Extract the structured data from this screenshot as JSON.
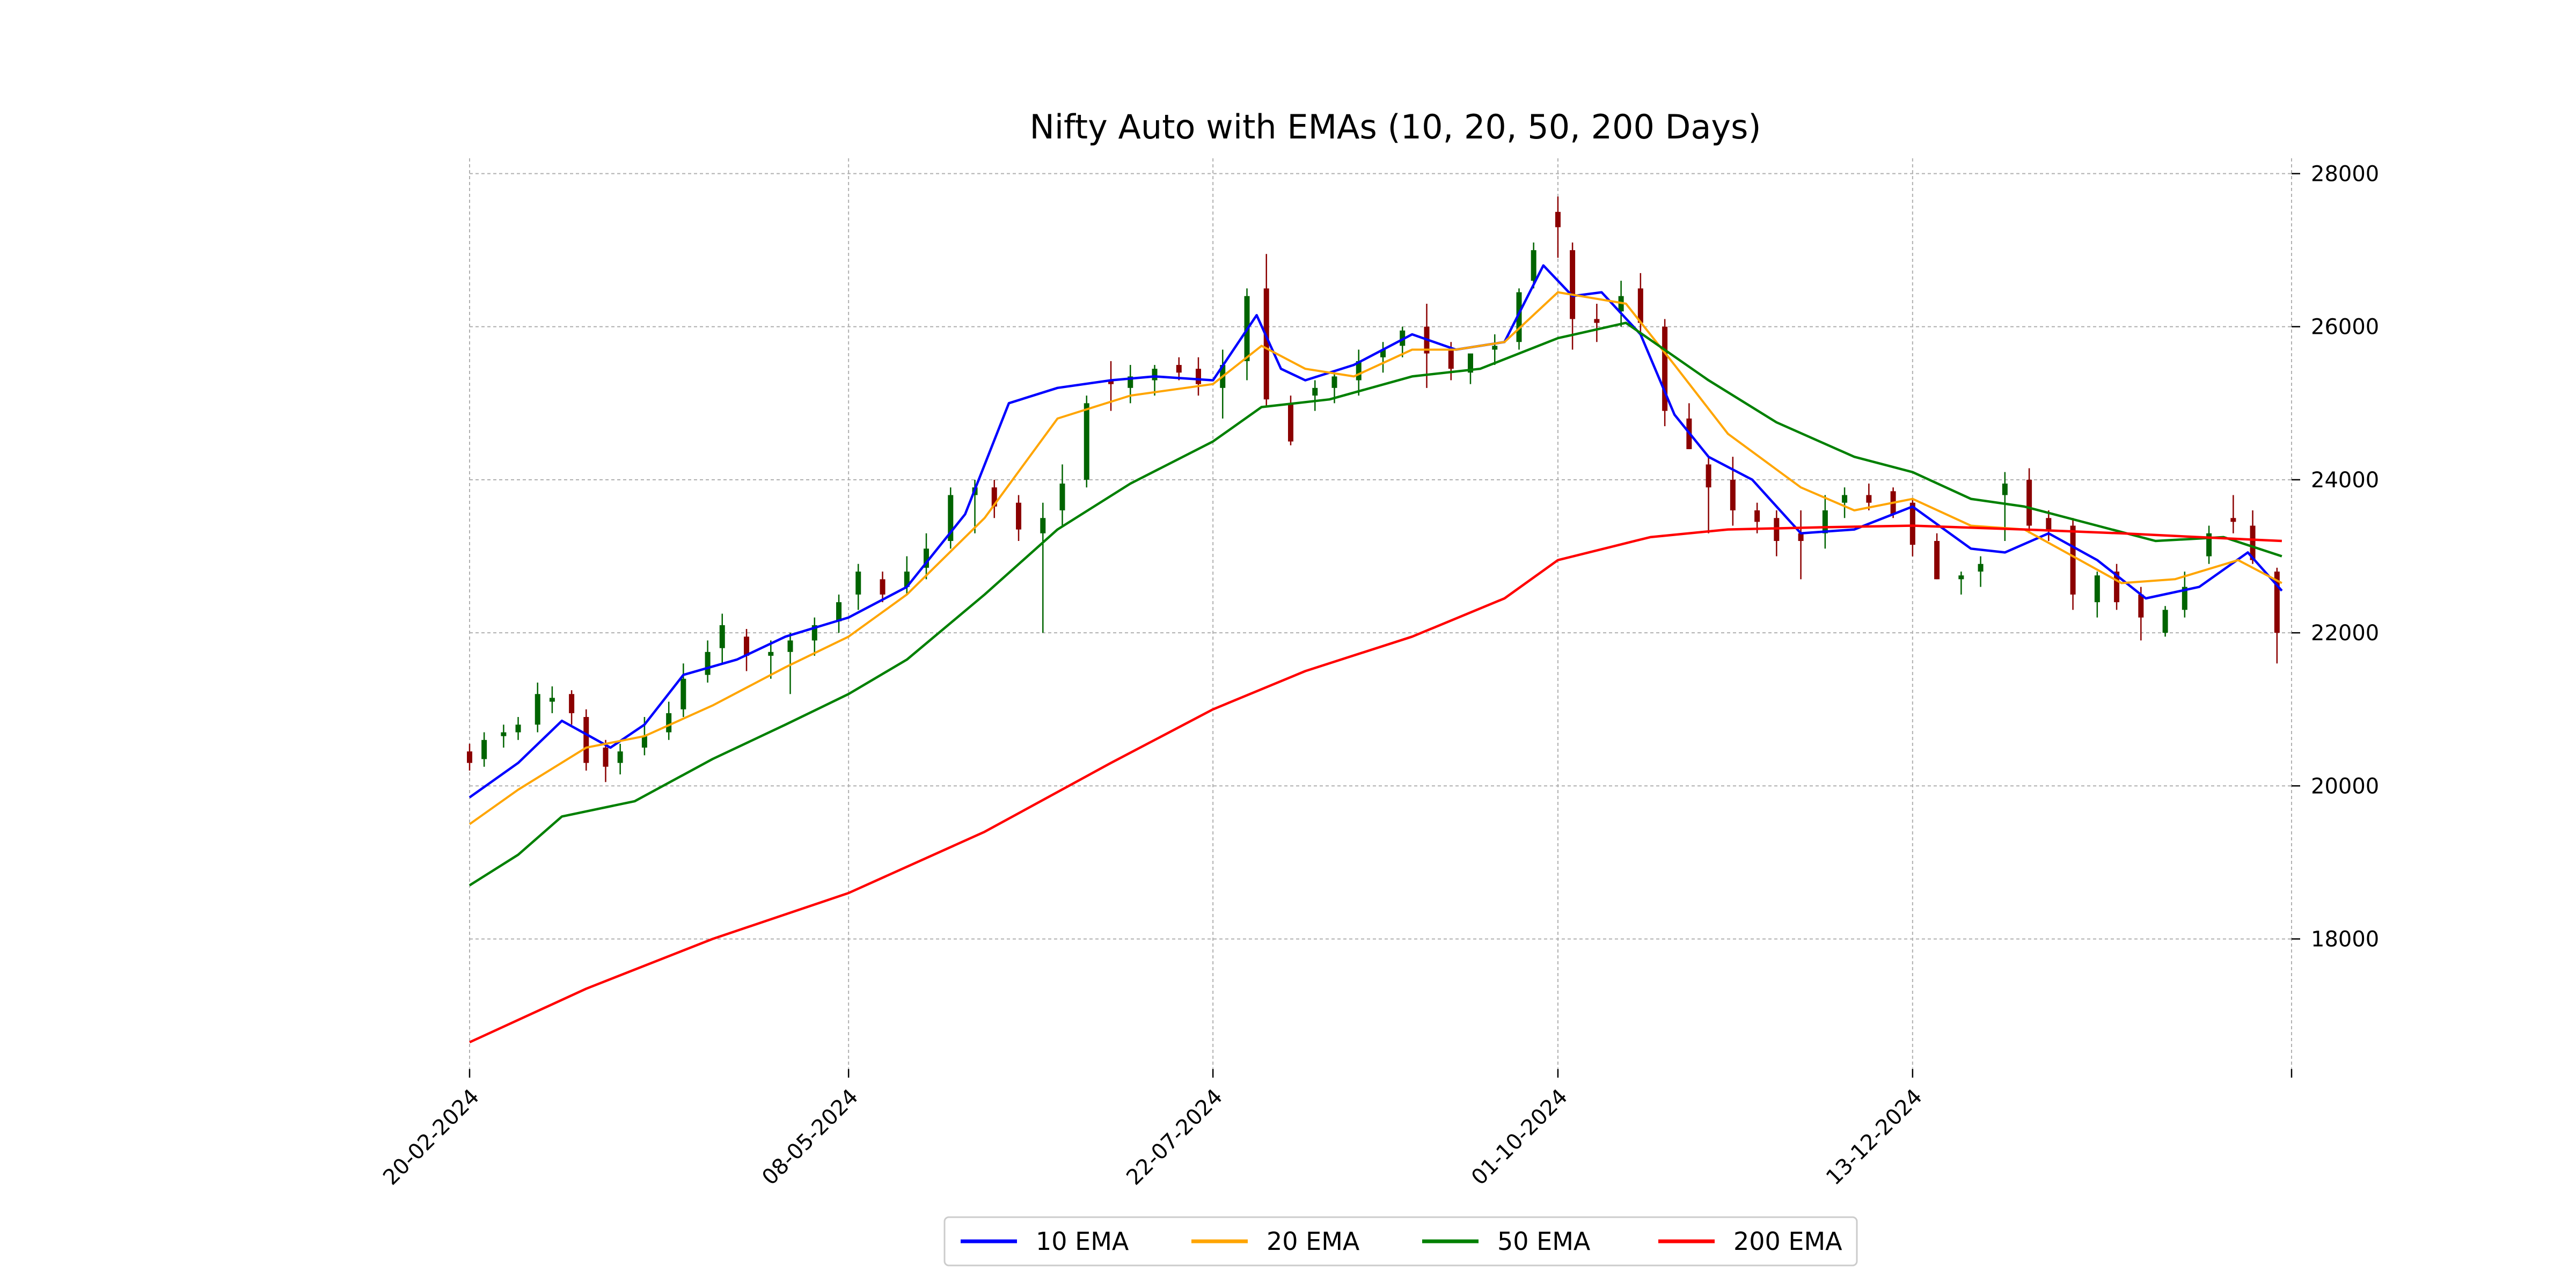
{
  "chart_data": {
    "type": "line",
    "title": "Nifty Auto with EMAs (10, 20, 50, 200 Days)",
    "xlabel": "",
    "ylabel": "",
    "x_range": [
      "2024-02-20",
      "2025-03-01"
    ],
    "ylim": [
      16300,
      28200
    ],
    "y_axis_position": "right",
    "x_ticks": [
      "20-02-2024",
      "08-05-2024",
      "22-07-2024",
      "01-10-2024",
      "13-12-2024"
    ],
    "y_ticks": [
      18000,
      20000,
      22000,
      24000,
      26000,
      28000
    ],
    "grid": true,
    "legend": {
      "position": "bottom-center",
      "entries": [
        "10 EMA",
        "20 EMA",
        "50 EMA",
        "200 EMA"
      ]
    },
    "colors": {
      "ema10": "#0000ff",
      "ema20": "#ffa500",
      "ema50": "#008000",
      "ema200": "#ff0000",
      "candle_up": "#006400",
      "candle_down": "#8b0000",
      "grid": "#b0b0b0"
    },
    "series": [
      {
        "name": "10 EMA",
        "x": [
          "2024-02-20",
          "2024-03-01",
          "2024-03-10",
          "2024-03-20",
          "2024-03-27",
          "2024-04-04",
          "2024-04-15",
          "2024-04-25",
          "2024-05-08",
          "2024-05-20",
          "2024-06-01",
          "2024-06-10",
          "2024-06-20",
          "2024-07-01",
          "2024-07-10",
          "2024-07-22",
          "2024-07-31",
          "2024-08-05",
          "2024-08-10",
          "2024-08-20",
          "2024-09-01",
          "2024-09-10",
          "2024-09-20",
          "2024-09-28",
          "2024-10-04",
          "2024-10-10",
          "2024-10-18",
          "2024-10-25",
          "2024-11-01",
          "2024-11-10",
          "2024-11-20",
          "2024-12-01",
          "2024-12-13",
          "2024-12-25",
          "2025-01-01",
          "2025-01-10",
          "2025-01-20",
          "2025-01-30",
          "2025-02-10",
          "2025-02-20",
          "2025-02-27"
        ],
        "values": [
          19850,
          20300,
          20850,
          20500,
          20800,
          21450,
          21650,
          21950,
          22200,
          22600,
          23550,
          25000,
          25200,
          25300,
          25350,
          25300,
          26150,
          25450,
          25300,
          25500,
          25900,
          25700,
          25800,
          26800,
          26400,
          26450,
          25900,
          24850,
          24300,
          24000,
          23300,
          23350,
          23650,
          23100,
          23050,
          23300,
          22950,
          22450,
          22600,
          23050,
          22550
        ]
      },
      {
        "name": "20 EMA",
        "x": [
          "2024-02-20",
          "2024-03-01",
          "2024-03-15",
          "2024-03-27",
          "2024-04-10",
          "2024-04-25",
          "2024-05-08",
          "2024-05-20",
          "2024-06-05",
          "2024-06-20",
          "2024-07-05",
          "2024-07-22",
          "2024-08-01",
          "2024-08-10",
          "2024-08-20",
          "2024-09-01",
          "2024-09-10",
          "2024-09-20",
          "2024-10-01",
          "2024-10-15",
          "2024-10-25",
          "2024-11-05",
          "2024-11-20",
          "2024-12-01",
          "2024-12-13",
          "2024-12-25",
          "2025-01-05",
          "2025-01-15",
          "2025-01-25",
          "2025-02-05",
          "2025-02-18",
          "2025-02-27"
        ],
        "values": [
          19500,
          19950,
          20500,
          20650,
          21050,
          21550,
          21950,
          22500,
          23500,
          24800,
          25100,
          25250,
          25750,
          25450,
          25350,
          25700,
          25700,
          25800,
          26450,
          26300,
          25500,
          24600,
          23900,
          23600,
          23750,
          23400,
          23350,
          23000,
          22650,
          22700,
          22950,
          22650
        ]
      },
      {
        "name": "50 EMA",
        "x": [
          "2024-02-20",
          "2024-03-01",
          "2024-03-10",
          "2024-03-25",
          "2024-04-10",
          "2024-04-25",
          "2024-05-08",
          "2024-05-20",
          "2024-06-05",
          "2024-06-20",
          "2024-07-05",
          "2024-07-22",
          "2024-08-01",
          "2024-08-15",
          "2024-09-01",
          "2024-09-15",
          "2024-10-01",
          "2024-10-15",
          "2024-11-01",
          "2024-11-15",
          "2024-12-01",
          "2024-12-13",
          "2024-12-25",
          "2025-01-05",
          "2025-01-20",
          "2025-02-01",
          "2025-02-15",
          "2025-02-27"
        ],
        "values": [
          18700,
          19100,
          19600,
          19800,
          20350,
          20800,
          21200,
          21650,
          22500,
          23350,
          23950,
          24500,
          24950,
          25050,
          25350,
          25450,
          25850,
          26050,
          25300,
          24750,
          24300,
          24100,
          23750,
          23650,
          23400,
          23200,
          23250,
          23000
        ]
      },
      {
        "name": "200 EMA",
        "x": [
          "2024-02-20",
          "2024-03-15",
          "2024-04-10",
          "2024-05-08",
          "2024-06-05",
          "2024-07-01",
          "2024-07-22",
          "2024-08-10",
          "2024-09-01",
          "2024-09-20",
          "2024-10-01",
          "2024-10-20",
          "2024-11-05",
          "2024-11-25",
          "2024-12-13",
          "2025-01-05",
          "2025-01-25",
          "2025-02-10",
          "2025-02-27"
        ],
        "values": [
          16650,
          17350,
          18000,
          18600,
          19400,
          20300,
          21000,
          21500,
          21950,
          22450,
          22950,
          23250,
          23350,
          23380,
          23400,
          23350,
          23300,
          23250,
          23200
        ]
      }
    ],
    "ohlc": {
      "x": [
        "2024-02-20",
        "2024-02-23",
        "2024-02-27",
        "2024-03-01",
        "2024-03-05",
        "2024-03-08",
        "2024-03-12",
        "2024-03-15",
        "2024-03-19",
        "2024-03-22",
        "2024-03-27",
        "2024-04-01",
        "2024-04-04",
        "2024-04-09",
        "2024-04-12",
        "2024-04-17",
        "2024-04-22",
        "2024-04-26",
        "2024-05-01",
        "2024-05-06",
        "2024-05-10",
        "2024-05-15",
        "2024-05-20",
        "2024-05-24",
        "2024-05-29",
        "2024-06-03",
        "2024-06-07",
        "2024-06-12",
        "2024-06-17",
        "2024-06-21",
        "2024-06-26",
        "2024-07-01",
        "2024-07-05",
        "2024-07-10",
        "2024-07-15",
        "2024-07-19",
        "2024-07-24",
        "2024-07-29",
        "2024-08-02",
        "2024-08-07",
        "2024-08-12",
        "2024-08-16",
        "2024-08-21",
        "2024-08-26",
        "2024-08-30",
        "2024-09-04",
        "2024-09-09",
        "2024-09-13",
        "2024-09-18",
        "2024-09-23",
        "2024-09-26",
        "2024-10-01",
        "2024-10-04",
        "2024-10-09",
        "2024-10-14",
        "2024-10-18",
        "2024-10-23",
        "2024-10-28",
        "2024-11-01",
        "2024-11-06",
        "2024-11-11",
        "2024-11-15",
        "2024-11-20",
        "2024-11-25",
        "2024-11-29",
        "2024-12-04",
        "2024-12-09",
        "2024-12-13",
        "2024-12-18",
        "2024-12-23",
        "2024-12-27",
        "2025-01-01",
        "2025-01-06",
        "2025-01-10",
        "2025-01-15",
        "2025-01-20",
        "2025-01-24",
        "2025-01-29",
        "2025-02-03",
        "2025-02-07",
        "2025-02-12",
        "2025-02-17",
        "2025-02-21",
        "2025-02-26"
      ],
      "open": [
        20450,
        20350,
        20650,
        20700,
        20800,
        21100,
        21200,
        20900,
        20500,
        20300,
        20500,
        20700,
        21000,
        21450,
        21800,
        21950,
        21700,
        21750,
        21900,
        22150,
        22500,
        22700,
        22600,
        22850,
        23200,
        23800,
        23900,
        23700,
        23300,
        23600,
        24000,
        25300,
        25200,
        25300,
        25500,
        25450,
        25200,
        25550,
        26500,
        25000,
        25100,
        25200,
        25300,
        25600,
        25750,
        26000,
        25700,
        25400,
        25700,
        25800,
        26600,
        27500,
        27000,
        26100,
        26200,
        26500,
        26000,
        24800,
        24200,
        24000,
        23600,
        23500,
        23300,
        23300,
        23700,
        23800,
        23850,
        23700,
        23200,
        22700,
        22800,
        23800,
        24000,
        23500,
        23400,
        22400,
        22800,
        22500,
        22000,
        22300,
        23000,
        23500,
        23400,
        22800
      ],
      "high": [
        20550,
        20700,
        20800,
        20900,
        21350,
        21300,
        21250,
        21000,
        20600,
        20550,
        20900,
        21100,
        21600,
        21900,
        22250,
        22050,
        21900,
        22000,
        22200,
        22500,
        22900,
        22800,
        23000,
        23300,
        23900,
        24000,
        24000,
        23800,
        23700,
        24200,
        25100,
        25550,
        25500,
        25500,
        25600,
        25600,
        25700,
        26500,
        26950,
        25100,
        25300,
        25400,
        25700,
        25800,
        26000,
        26300,
        25800,
        25600,
        25900,
        26500,
        27100,
        27700,
        27100,
        26300,
        26600,
        26700,
        26100,
        25000,
        24300,
        24300,
        23700,
        23600,
        23600,
        23800,
        23900,
        23950,
        23900,
        23750,
        23300,
        22800,
        23000,
        24100,
        24150,
        23600,
        23500,
        22800,
        22900,
        22600,
        22350,
        22800,
        23400,
        23800,
        23600,
        22850
      ],
      "low": [
        20200,
        20250,
        20500,
        20600,
        20700,
        20950,
        20800,
        20200,
        20050,
        20150,
        20400,
        20600,
        20900,
        21350,
        21600,
        21500,
        21400,
        21200,
        21700,
        22000,
        22300,
        22400,
        22500,
        22700,
        23100,
        23300,
        23500,
        23200,
        22000,
        23400,
        23900,
        24900,
        25000,
        25100,
        25300,
        25100,
        24800,
        25300,
        24950,
        24450,
        24900,
        25000,
        25100,
        25400,
        25600,
        25200,
        25300,
        25250,
        25500,
        25700,
        26500,
        26900,
        25700,
        25800,
        26000,
        25900,
        24700,
        24400,
        23300,
        23400,
        23300,
        23000,
        22700,
        23100,
        23500,
        23600,
        23500,
        23000,
        22700,
        22500,
        22600,
        23200,
        23300,
        23200,
        22300,
        22200,
        22300,
        21900,
        21950,
        22200,
        22900,
        23300,
        22900,
        21600
      ],
      "close": [
        20300,
        20600,
        20700,
        20800,
        21200,
        21150,
        20950,
        20300,
        20250,
        20450,
        20650,
        20950,
        21400,
        21750,
        22100,
        21700,
        21750,
        21900,
        22100,
        22400,
        22800,
        22500,
        22800,
        23100,
        23800,
        23900,
        23650,
        23350,
        23500,
        23950,
        25000,
        25250,
        25350,
        25450,
        25400,
        25250,
        25500,
        26400,
        25050,
        24500,
        25200,
        25350,
        25550,
        25700,
        25950,
        25650,
        25450,
        25650,
        25750,
        26450,
        27000,
        27300,
        26100,
        26050,
        26400,
        26050,
        24900,
        24400,
        23900,
        23600,
        23450,
        23200,
        23200,
        23600,
        23800,
        23700,
        23550,
        23150,
        22700,
        22750,
        22900,
        23950,
        23400,
        23350,
        22500,
        22750,
        22400,
        22200,
        22300,
        22600,
        23300,
        23450,
        22950,
        22000
      ]
    }
  }
}
